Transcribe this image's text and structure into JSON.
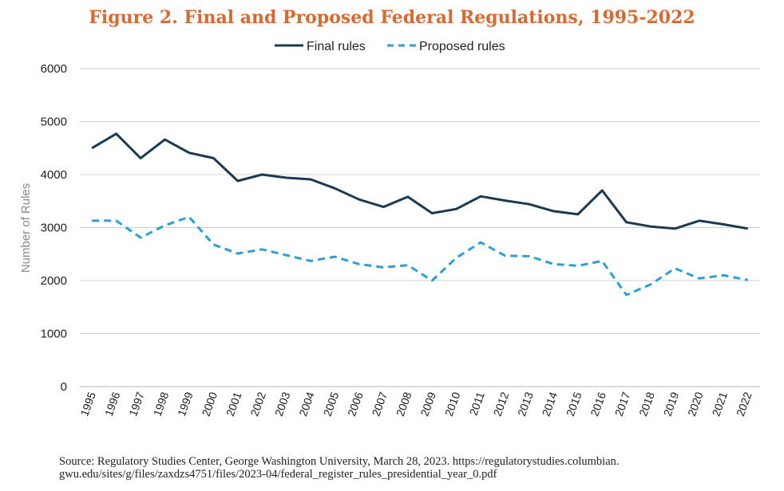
{
  "title": "Figure 2. Final and Proposed Federal Regulations, 1995-2022",
  "source_line1": "Source: Regulatory Studies Center, George Washington University, March 28, 2023. https://regulatorystudies.columbian.",
  "source_line2": "gwu.edu/sites/g/files/zaxdzs4751/files/2023-04/federal_register_rules_presidential_year_0.pdf",
  "colors": {
    "final": "#1b3a52",
    "proposed": "#2a9fd8",
    "title": "#d9692f",
    "grid": "#d0d0d0"
  },
  "chart_data": {
    "type": "line",
    "title": "Figure 2. Final and Proposed Federal Regulations, 1995-2022",
    "xlabel": "",
    "ylabel": "Number of Rules",
    "ylim": [
      0,
      6000
    ],
    "yticks": [
      0,
      1000,
      2000,
      3000,
      4000,
      5000,
      6000
    ],
    "grid": "horizontal",
    "legend": "top-center",
    "x": [
      "1995",
      "1996",
      "1997",
      "1998",
      "1999",
      "2000",
      "2001",
      "2002",
      "2003",
      "2004",
      "2005",
      "2006",
      "2007",
      "2008",
      "2009",
      "2010",
      "2011",
      "2012",
      "2013",
      "2014",
      "2015",
      "2016",
      "2017",
      "2018",
      "2019",
      "2020",
      "2021",
      "2022"
    ],
    "series": [
      {
        "name": "Final rules",
        "style": "solid",
        "values": [
          4500,
          4770,
          4310,
          4660,
          4410,
          4310,
          3880,
          4000,
          3940,
          3910,
          3740,
          3530,
          3390,
          3580,
          3270,
          3350,
          3590,
          3510,
          3440,
          3310,
          3250,
          3700,
          3100,
          3020,
          2980,
          3130,
          3060,
          2980
        ]
      },
      {
        "name": "Proposed rules",
        "style": "dashed",
        "values": [
          3130,
          3130,
          2810,
          3040,
          3200,
          2680,
          2510,
          2590,
          2480,
          2370,
          2450,
          2310,
          2250,
          2290,
          2000,
          2430,
          2720,
          2470,
          2460,
          2310,
          2280,
          2370,
          1730,
          1930,
          2230,
          2040,
          2100,
          2010
        ]
      }
    ]
  }
}
